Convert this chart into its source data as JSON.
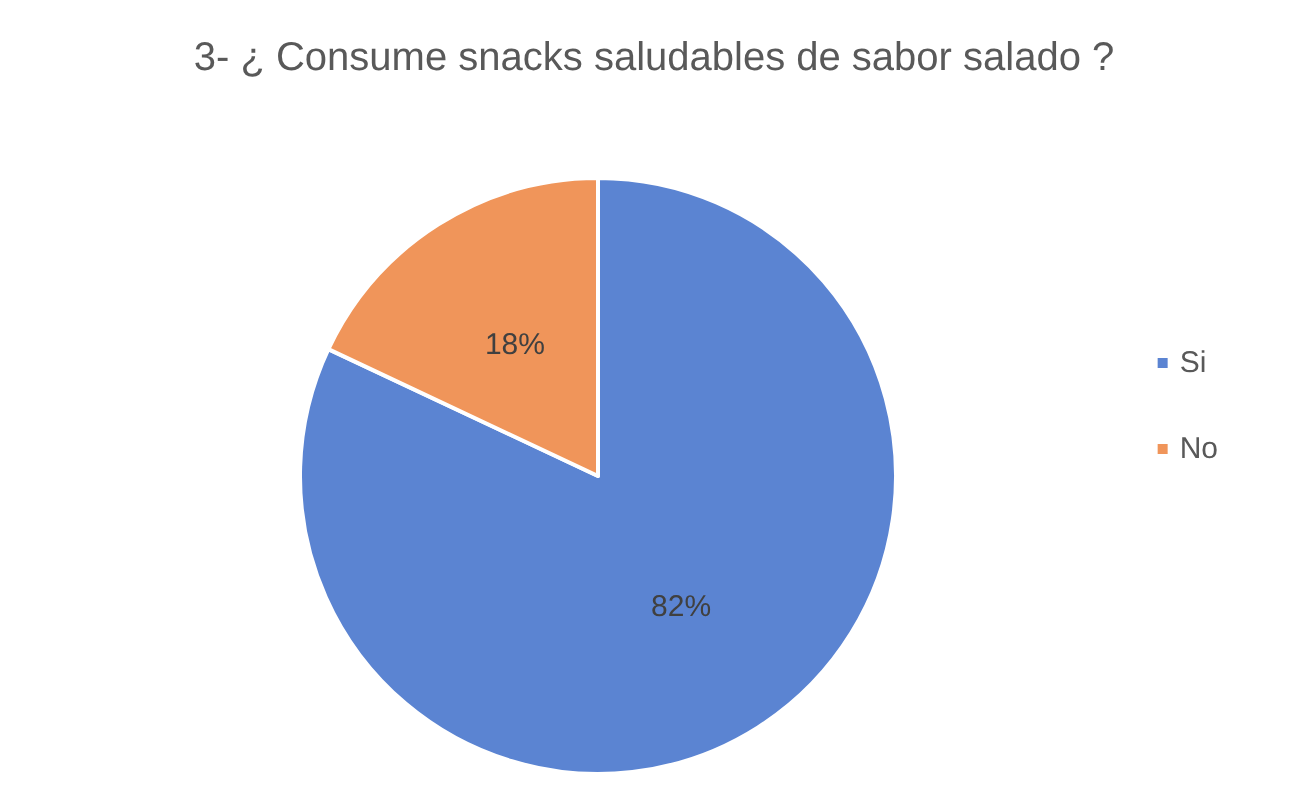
{
  "chart_data": {
    "type": "pie",
    "title": "3- ¿ Consume snacks saludables de sabor salado ?",
    "categories": [
      "Si",
      "No"
    ],
    "values": [
      82,
      18
    ],
    "colors": [
      "#5b84d2",
      "#f0955a"
    ],
    "value_labels": [
      "82%",
      "18%"
    ],
    "legend": "right"
  }
}
